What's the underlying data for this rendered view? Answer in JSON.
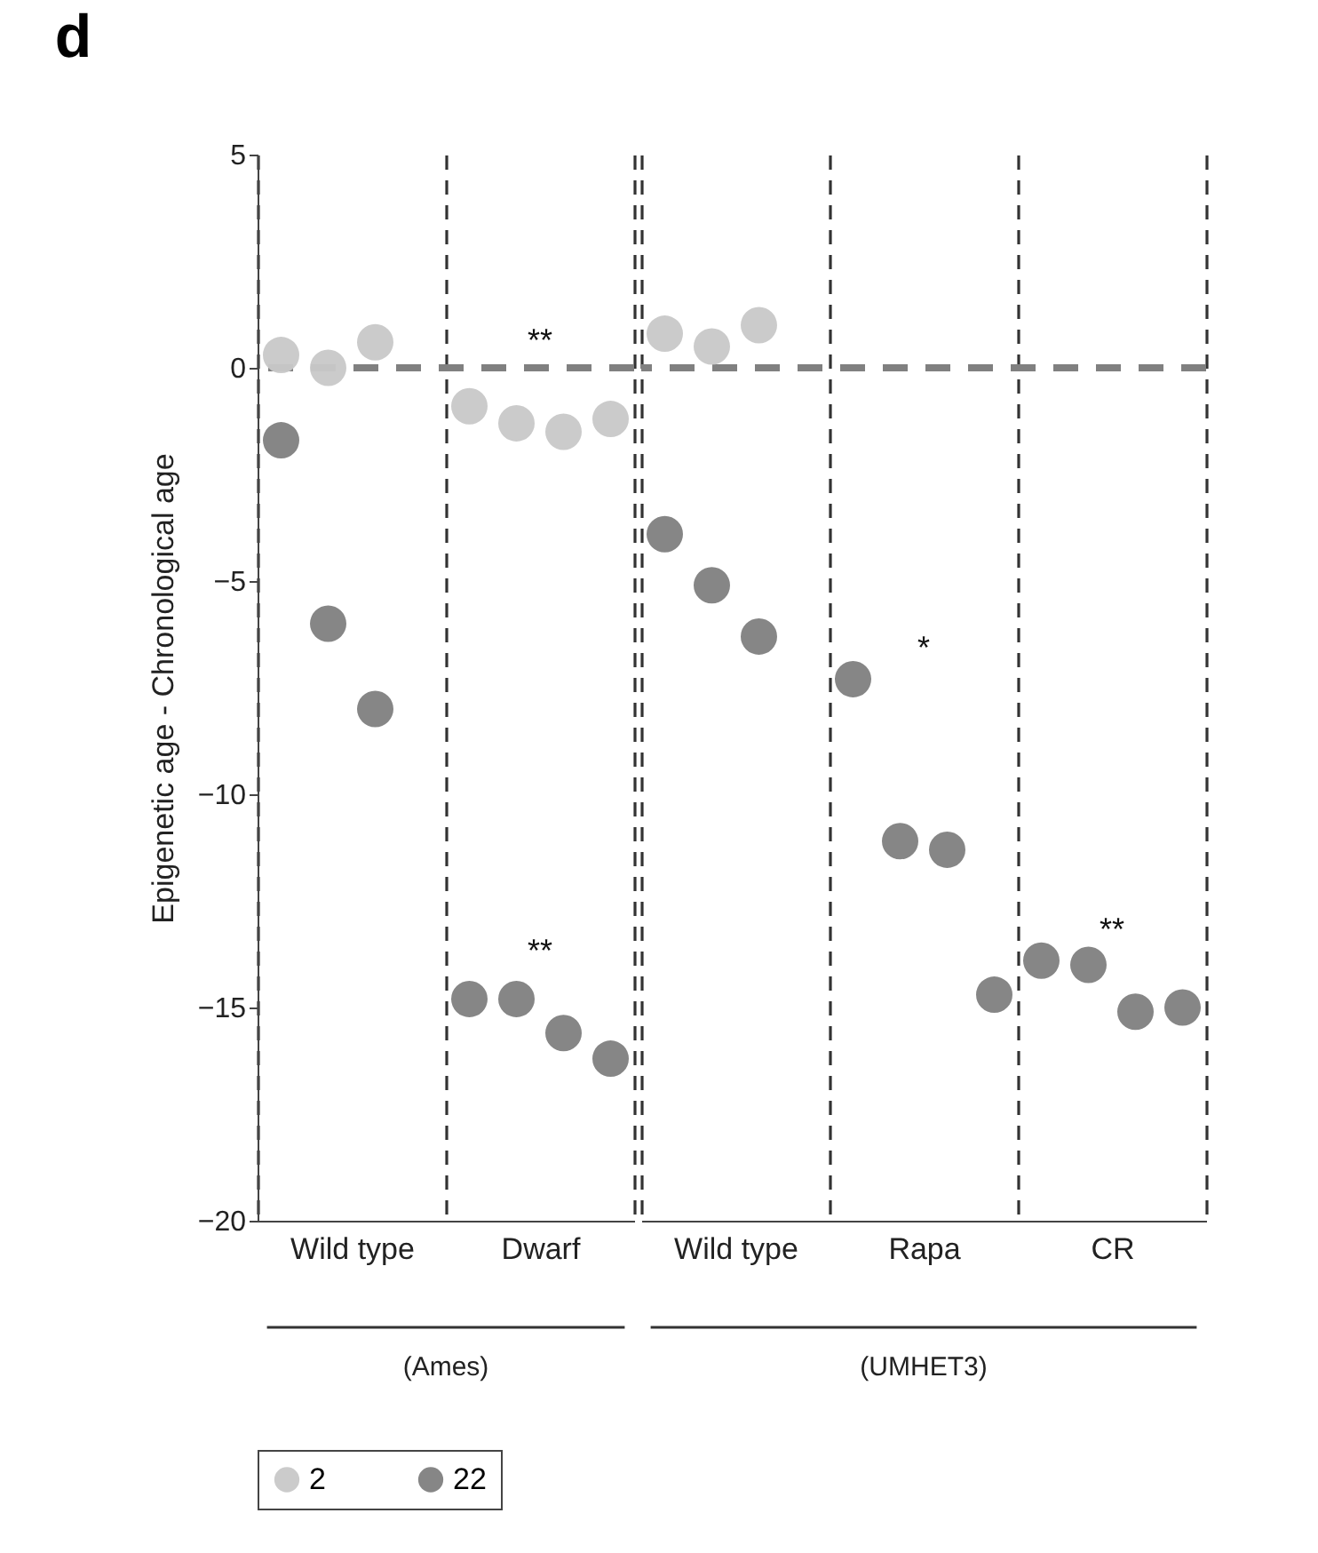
{
  "chart_data": [
    {
      "type": "scatter",
      "title": "d",
      "ylabel": "Epigenetic age - Chronological age",
      "xlabel": "(Ames)",
      "categories": [
        "Wild type",
        "Dwarf"
      ],
      "series": [
        {
          "name": "2",
          "color": "#c8c8c8",
          "x": [
            "Wild type",
            "Wild type",
            "Wild type",
            "Dwarf",
            "Dwarf",
            "Dwarf",
            "Dwarf"
          ],
          "values": [
            0.3,
            0.0,
            0.6,
            -0.9,
            -1.3,
            -1.5,
            -1.2
          ]
        },
        {
          "name": "22",
          "color": "#808080",
          "x": [
            "Wild type",
            "Wild type",
            "Wild type",
            "Dwarf",
            "Dwarf",
            "Dwarf",
            "Dwarf"
          ],
          "values": [
            -1.7,
            -6.0,
            -8.0,
            -14.8,
            -14.8,
            -15.6,
            -16.2
          ]
        }
      ],
      "ylim": [
        -20,
        5
      ],
      "yticks": [
        -20,
        -15,
        -10,
        -5,
        0,
        5
      ],
      "ref_lines": [
        {
          "axis": "y",
          "value": 0,
          "color": "#808080",
          "line_style": "dashed"
        }
      ],
      "annotations": [
        "**",
        "**"
      ],
      "grid": "x",
      "legend": "bottom",
      "marker": "circle"
    },
    {
      "type": "scatter",
      "xlabel": "(UMHET3)",
      "categories": [
        "Wild type",
        "Rapa",
        "CR"
      ],
      "series": [
        {
          "name": "2",
          "color": "#c8c8c8",
          "x": [
            "Wild type",
            "Wild type",
            "Wild type"
          ],
          "values": [
            0.8,
            0.5,
            1.0
          ]
        },
        {
          "name": "22",
          "color": "#808080",
          "x": [
            "Wild type",
            "Wild type",
            "Wild type",
            "Rapa",
            "Rapa",
            "Rapa",
            "Rapa",
            "CR",
            "CR",
            "CR",
            "CR"
          ],
          "values": [
            -3.9,
            -5.1,
            -6.3,
            -7.3,
            -11.1,
            -11.3,
            -14.7,
            -13.9,
            -14.0,
            -15.1,
            -15.0
          ]
        }
      ],
      "ylim": [
        -20,
        5
      ],
      "tick_labels": "x",
      "ref_lines": [
        {
          "axis": "y",
          "value": 0,
          "color": "#808080",
          "line_style": "dashed"
        }
      ],
      "annotations": [
        "*",
        "**"
      ],
      "grid": "x",
      "legend": "bottom",
      "marker": "circle"
    }
  ]
}
